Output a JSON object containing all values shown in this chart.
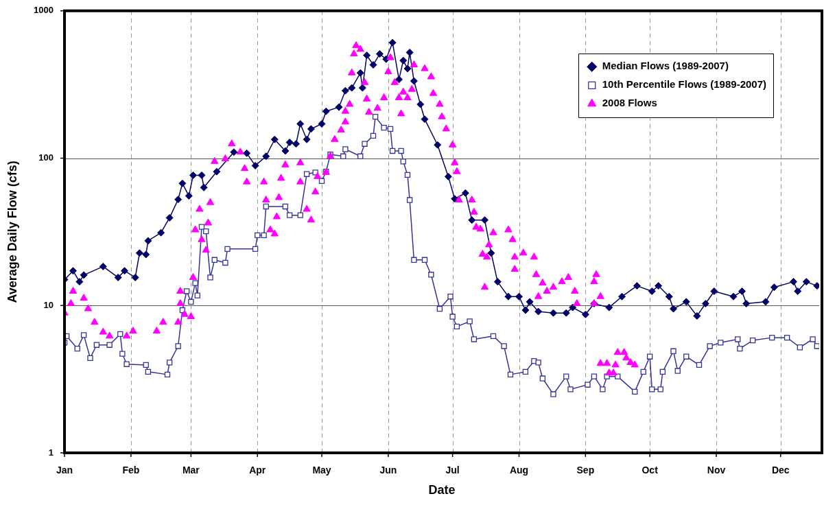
{
  "chart_data": {
    "type": "line",
    "xlabel": "Date",
    "ylabel": "Average Daily Flow (cfs)",
    "log": "y",
    "grid": true,
    "legend": "top right",
    "xlim": [
      "--01-01",
      "--12-19"
    ],
    "xticks": [
      {
        "value": "--01-01",
        "label": "Jan"
      },
      {
        "value": "--02-01",
        "label": "Feb"
      },
      {
        "value": "--03-01",
        "label": "Mar"
      },
      {
        "value": "--04-01",
        "label": "Apr"
      },
      {
        "value": "--05-01",
        "label": "May"
      },
      {
        "value": "--06-01",
        "label": "Jun"
      },
      {
        "value": "--07-01",
        "label": "Jul"
      },
      {
        "value": "--08-01",
        "label": "Aug"
      },
      {
        "value": "--09-01",
        "label": "Sep"
      },
      {
        "value": "--10-01",
        "label": "Oct"
      },
      {
        "value": "--11-01",
        "label": "Nov"
      },
      {
        "value": "--12-01",
        "label": "Dec"
      }
    ],
    "ylim": [
      1,
      1000
    ],
    "yticks": [
      1,
      10,
      100,
      1000
    ],
    "series": [
      {
        "name": "Median Flows (1989-2007)",
        "color": "#000066",
        "marker": "diamond",
        "line_style": "solid",
        "x": [
          "--01-01",
          "--01-05",
          "--01-08",
          "--01-10",
          "--01-19",
          "--01-26",
          "--01-29",
          "--02-03",
          "--02-05",
          "--02-08",
          "--02-09",
          "--02-15",
          "--02-19",
          "--02-23",
          "--02-25",
          "--02-28",
          "--03-02",
          "--03-06",
          "--03-07",
          "--03-13",
          "--03-21",
          "--03-27",
          "--03-31",
          "--04-05",
          "--04-09",
          "--04-14",
          "--04-16",
          "--04-19",
          "--04-21",
          "--04-24",
          "--04-26",
          "--05-01",
          "--05-03",
          "--05-09",
          "--05-12",
          "--05-15",
          "--05-19",
          "--05-20",
          "--05-22",
          "--05-25",
          "--05-28",
          "--05-31",
          "--06-03",
          "--06-06",
          "--06-08",
          "--06-10",
          "--06-11",
          "--06-13",
          "--06-16",
          "--06-18",
          "--06-24",
          "--06-29",
          "--07-02",
          "--07-07",
          "--07-10",
          "--07-16",
          "--07-19",
          "--07-22",
          "--07-27",
          "--08-01",
          "--08-04",
          "--08-06",
          "--08-10",
          "--08-17",
          "--08-23",
          "--08-26",
          "--09-01",
          "--09-05",
          "--09-12",
          "--09-18",
          "--09-25",
          "--10-02",
          "--10-05",
          "--10-10",
          "--10-12",
          "--10-18",
          "--10-23",
          "--10-27",
          "--10-31",
          "--11-09",
          "--11-13",
          "--11-15",
          "--11-24",
          "--11-28",
          "--12-07",
          "--12-09",
          "--12-13",
          "--12-18"
        ],
        "values": [
          15,
          17.2,
          14.5,
          16.1,
          18.4,
          15.5,
          17.2,
          15.5,
          22.7,
          22.2,
          27.5,
          31.2,
          39.4,
          52.4,
          67.4,
          55.5,
          76.6,
          76.6,
          63.2,
          81,
          110,
          108,
          89,
          103,
          134,
          112,
          128,
          125,
          171,
          134,
          158,
          171,
          208,
          222,
          287,
          300,
          379,
          300,
          499,
          430,
          510,
          470,
          608,
          342,
          460,
          405,
          522,
          334,
          232,
          184,
          123,
          75,
          53,
          58,
          38,
          38,
          22.7,
          14.5,
          11.5,
          11.5,
          9.3,
          10.6,
          9.1,
          8.9,
          8.9,
          9.7,
          8.7,
          10.3,
          9.7,
          11.5,
          13.6,
          12.5,
          13.6,
          11.5,
          9.5,
          10.6,
          8.5,
          10.3,
          12.5,
          11.5,
          12.5,
          10.3,
          10.6,
          13.3,
          14.5,
          12.5,
          14.5,
          13.6
        ]
      },
      {
        "name": "10th Percentile Flows (1989-2007)",
        "color": "#333399",
        "marker": "square",
        "line_style": "solid",
        "x": [
          "--01-01",
          "--01-02",
          "--01-07",
          "--01-10",
          "--01-13",
          "--01-16",
          "--01-22",
          "--01-27",
          "--01-28",
          "--01-30",
          "--02-08",
          "--02-09",
          "--02-18",
          "--02-19",
          "--02-23",
          "--02-25",
          "--02-27",
          "--03-01",
          "--03-03",
          "--03-04",
          "--03-06",
          "--03-08",
          "--03-10",
          "--03-12",
          "--03-17",
          "--03-18",
          "--03-31",
          "--04-01",
          "--04-04",
          "--04-05",
          "--04-14",
          "--04-16",
          "--04-21",
          "--04-24",
          "--04-28",
          "--05-01",
          "--05-03",
          "--05-05",
          "--05-11",
          "--05-12",
          "--05-19",
          "--05-21",
          "--05-25",
          "--05-26",
          "--05-30",
          "--06-02",
          "--06-03",
          "--06-07",
          "--06-08",
          "--06-10",
          "--06-11",
          "--06-13",
          "--06-18",
          "--06-21",
          "--06-25",
          "--06-30",
          "--07-01",
          "--07-03",
          "--07-09",
          "--07-11",
          "--07-20",
          "--07-25",
          "--07-28",
          "--08-04",
          "--08-08",
          "--08-10",
          "--08-12",
          "--08-17",
          "--08-23",
          "--08-25",
          "--09-02",
          "--09-05",
          "--09-09",
          "--09-11",
          "--09-16",
          "--09-24",
          "--09-28",
          "--10-01",
          "--10-02",
          "--10-06",
          "--10-07",
          "--10-12",
          "--10-14",
          "--10-18",
          "--10-24",
          "--10-29",
          "--11-03",
          "--11-11",
          "--11-12",
          "--11-18",
          "--11-27",
          "--12-04",
          "--12-10",
          "--12-16",
          "--12-18"
        ],
        "values": [
          5.6,
          6.2,
          5.1,
          6.3,
          4.4,
          5.4,
          5.4,
          6.4,
          4.7,
          4,
          3.95,
          3.55,
          3.4,
          4.1,
          5.3,
          9.3,
          12.5,
          10.6,
          14.2,
          11.7,
          34.2,
          31.9,
          15.5,
          20.4,
          19.5,
          24.2,
          24.2,
          30,
          30,
          47,
          47,
          41,
          41,
          78,
          80,
          70,
          81,
          106,
          103,
          115,
          103,
          125,
          142,
          191,
          161,
          158,
          112,
          112,
          95,
          77,
          52,
          20.4,
          20.4,
          16.2,
          9.5,
          11.5,
          8.4,
          7.2,
          7.8,
          5.9,
          6.2,
          5.3,
          3.4,
          3.55,
          4.2,
          4.1,
          3.2,
          2.5,
          3.3,
          2.7,
          2.9,
          3.3,
          2.7,
          3.3,
          3.3,
          2.6,
          3.55,
          4.5,
          2.7,
          2.7,
          3.55,
          4.9,
          3.6,
          4.5,
          3.95,
          5.3,
          5.6,
          5.9,
          5.1,
          5.8,
          6.05,
          6.05,
          5.2,
          5.9,
          5.3
        ]
      },
      {
        "name": "2008 Flows",
        "type": "scatter",
        "color": "#ff00ff",
        "marker": "triangle",
        "x": [
          "--01-01",
          "--01-04",
          "--01-05",
          "--01-10",
          "--01-12",
          "--01-15",
          "--01-19",
          "--01-22",
          "--01-30",
          "--02-02",
          "--02-13",
          "--02-16",
          "--02-23",
          "--02-24",
          "--02-24",
          "--02-26",
          "--03-01",
          "--03-02",
          "--03-03",
          "--03-05",
          "--03-06",
          "--03-08",
          "--03-09",
          "--03-10",
          "--03-12",
          "--03-17",
          "--03-20",
          "--03-24",
          "--03-26",
          "--03-27",
          "--04-04",
          "--04-05",
          "--04-07",
          "--04-09",
          "--04-10",
          "--04-11",
          "--04-12",
          "--04-14",
          "--04-21",
          "--04-21",
          "--04-24",
          "--04-26",
          "--04-28",
          "--04-29",
          "--05-03",
          "--05-05",
          "--05-07",
          "--05-10",
          "--05-12",
          "--05-12",
          "--05-14",
          "--05-15",
          "--05-16",
          "--05-17",
          "--05-19",
          "--05-21",
          "--05-22",
          "--05-23",
          "--05-27",
          "--05-30",
          "--06-01",
          "--06-02",
          "--06-04",
          "--06-06",
          "--06-07",
          "--06-08",
          "--06-10",
          "--06-12",
          "--06-13",
          "--06-18",
          "--06-21",
          "--06-22",
          "--06-25",
          "--06-26",
          "--06-28",
          "--07-01",
          "--07-02",
          "--07-03",
          "--07-04",
          "--07-10",
          "--07-11",
          "--07-12",
          "--07-14",
          "--07-15",
          "--07-16",
          "--07-17",
          "--07-18",
          "--07-20",
          "--07-27",
          "--07-29",
          "--07-30",
          "--07-30",
          "--08-03",
          "--08-08",
          "--08-09",
          "--08-10",
          "--08-12",
          "--08-14",
          "--08-17",
          "--08-21",
          "--08-24",
          "--08-27",
          "--08-28",
          "--09-05",
          "--09-05",
          "--09-06",
          "--09-08",
          "--09-08",
          "--09-11",
          "--09-12",
          "--09-14",
          "--09-15",
          "--09-16",
          "--09-19",
          "--09-20",
          "--09-22",
          "--09-24"
        ],
        "values": [
          8.9,
          10.3,
          12.5,
          11.2,
          9.5,
          7.7,
          6.6,
          6.2,
          6.2,
          6.7,
          6.7,
          7.7,
          7.7,
          10.3,
          12.5,
          8.7,
          8.4,
          15.5,
          32.6,
          45,
          28,
          23.7,
          36.3,
          50,
          95,
          99,
          125,
          110,
          85,
          69,
          69,
          52,
          32.6,
          30.6,
          40,
          54,
          73,
          90,
          93,
          69,
          45,
          38,
          59,
          75,
          80,
          103,
          134,
          155,
          176,
          208,
          232,
          379,
          510,
          580,
          548,
          326,
          252,
          205,
          218,
          257,
          386,
          481,
          326,
          257,
          200,
          281,
          257,
          293,
          430,
          405,
          356,
          275,
          232,
          191,
          158,
          123,
          93,
          81,
          52,
          52,
          43,
          34,
          33,
          22.3,
          13.3,
          21.3,
          25.8,
          31.2,
          32.6,
          28,
          21.3,
          17.6,
          22.7,
          21.3,
          16.2,
          11.5,
          14.2,
          12.5,
          13.3,
          14.5,
          15.5,
          12.5,
          10.3,
          10.3,
          14.5,
          16.2,
          11.5,
          4.04,
          4.04,
          3.48,
          3.48,
          3.95,
          4.8,
          4.8,
          4.4,
          4.1,
          3.95
        ]
      }
    ]
  }
}
